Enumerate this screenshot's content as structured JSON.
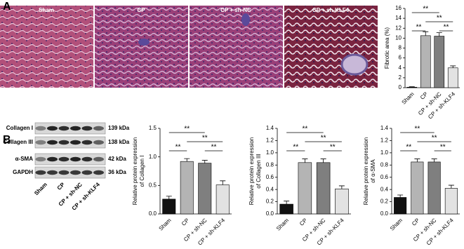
{
  "panel_labels": [
    "A",
    "B"
  ],
  "histology": {
    "labels": [
      "Sham",
      "CP",
      "CP + sh-NC",
      "CP + sh-KLF4"
    ]
  },
  "western_blot": {
    "proteins": [
      "Collagen I",
      "Collagen III",
      "α-SMA",
      "GAPDH"
    ],
    "sizes": [
      "139 kDa",
      "138 kDa",
      "42 kDa",
      "36 kDa"
    ],
    "lanes": [
      "Sham",
      "CP",
      "CP + sh-NC",
      "CP + sh-KLF4"
    ]
  },
  "chart_data": [
    {
      "type": "bar",
      "y_label": [
        "Fibrotic area (%)"
      ],
      "categories": [
        "Sham",
        "CP",
        "CP + sh-NC",
        "CP + sh-KLF4"
      ],
      "values": [
        0.1,
        10.5,
        10.4,
        4.0
      ],
      "errors": [
        0.1,
        0.8,
        0.7,
        0.4
      ],
      "colors": [
        "#111111",
        "#b4b4b4",
        "#7f7f7f",
        "#e2e2e2"
      ],
      "ylim": [
        0,
        16
      ],
      "yticks": [
        0,
        2,
        4,
        6,
        8,
        10,
        12,
        14,
        16
      ],
      "significance": [
        "**",
        "**",
        "**",
        "**"
      ]
    },
    {
      "type": "bar",
      "y_label": [
        "Relative protein expression",
        "of Collagen I"
      ],
      "categories": [
        "Sham",
        "CP",
        "CP + sh-NC",
        "CP + sh-KLF4"
      ],
      "values": [
        0.26,
        0.92,
        0.89,
        0.51
      ],
      "errors": [
        0.05,
        0.05,
        0.05,
        0.07
      ],
      "colors": [
        "#111111",
        "#b4b4b4",
        "#7f7f7f",
        "#e2e2e2"
      ],
      "ylim": [
        0,
        1.5
      ],
      "yticks": [
        {
          "value": 0,
          "label": "0.0"
        },
        0.5,
        {
          "value": 1,
          "label": "1.0"
        },
        1.5
      ],
      "significance": [
        "**",
        "**",
        "**",
        "**"
      ]
    },
    {
      "type": "bar",
      "y_label": [
        "Relative protein expression",
        "of Collagen III"
      ],
      "categories": [
        "Sham",
        "CP",
        "CP + sh-NC",
        "CP + sh-KLF4"
      ],
      "values": [
        0.16,
        0.84,
        0.84,
        0.41
      ],
      "errors": [
        0.05,
        0.06,
        0.06,
        0.05
      ],
      "colors": [
        "#111111",
        "#b4b4b4",
        "#7f7f7f",
        "#e2e2e2"
      ],
      "ylim": [
        0,
        1.4
      ],
      "yticks": [
        {
          "value": 0,
          "label": "0.0"
        },
        0.2,
        0.4,
        0.6,
        0.8,
        {
          "value": 1,
          "label": "1.0"
        },
        1.2,
        1.4
      ],
      "significance": [
        "**",
        "**",
        "**",
        "**"
      ]
    },
    {
      "type": "bar",
      "y_label": [
        "Relative protein expression",
        "of α-SMA"
      ],
      "categories": [
        "Sham",
        "CP",
        "CP + sh-NC",
        "CP + sh-KLF4"
      ],
      "values": [
        0.27,
        0.85,
        0.85,
        0.42
      ],
      "errors": [
        0.04,
        0.05,
        0.05,
        0.05
      ],
      "colors": [
        "#111111",
        "#b4b4b4",
        "#7f7f7f",
        "#e2e2e2"
      ],
      "ylim": [
        0,
        1.4
      ],
      "yticks": [
        {
          "value": 0,
          "label": "0.0"
        },
        0.2,
        0.4,
        0.6,
        0.8,
        {
          "value": 1,
          "label": "1.0"
        },
        1.2,
        1.4
      ],
      "significance": [
        "**",
        "**",
        "**",
        "**"
      ]
    }
  ]
}
